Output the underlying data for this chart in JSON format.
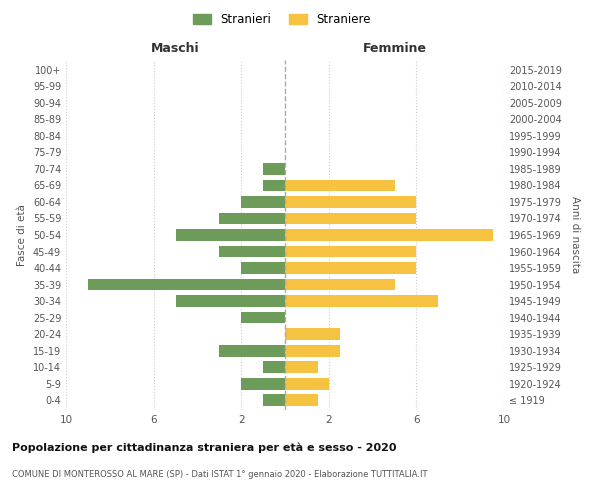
{
  "age_groups": [
    "100+",
    "95-99",
    "90-94",
    "85-89",
    "80-84",
    "75-79",
    "70-74",
    "65-69",
    "60-64",
    "55-59",
    "50-54",
    "45-49",
    "40-44",
    "35-39",
    "30-34",
    "25-29",
    "20-24",
    "15-19",
    "10-14",
    "5-9",
    "0-4"
  ],
  "birth_years": [
    "≤ 1919",
    "1920-1924",
    "1925-1929",
    "1930-1934",
    "1935-1939",
    "1940-1944",
    "1945-1949",
    "1950-1954",
    "1955-1959",
    "1960-1964",
    "1965-1969",
    "1970-1974",
    "1975-1979",
    "1980-1984",
    "1985-1989",
    "1990-1994",
    "1995-1999",
    "2000-2004",
    "2005-2009",
    "2010-2014",
    "2015-2019"
  ],
  "maschi": [
    0,
    0,
    0,
    0,
    0,
    0,
    1,
    1,
    2,
    3,
    5,
    3,
    2,
    9,
    5,
    2,
    0,
    3,
    1,
    2,
    1
  ],
  "femmine": [
    0,
    0,
    0,
    0,
    0,
    0,
    0,
    5,
    6,
    6,
    9.5,
    6,
    6,
    5,
    7,
    0,
    2.5,
    2.5,
    1.5,
    2,
    1.5
  ],
  "color_maschi": "#6d9b5a",
  "color_femmine": "#f5c242",
  "title": "Popolazione per cittadinanza straniera per età e sesso - 2020",
  "subtitle": "COMUNE DI MONTEROSSO AL MARE (SP) - Dati ISTAT 1° gennaio 2020 - Elaborazione TUTTITALIA.IT",
  "legend_maschi": "Stranieri",
  "legend_femmine": "Straniere",
  "xlabel_left": "Maschi",
  "xlabel_right": "Femmine",
  "ylabel_left": "Fasce di età",
  "ylabel_right": "Anni di nascita",
  "xlim": 10,
  "background_color": "#ffffff",
  "grid_color": "#cccccc"
}
